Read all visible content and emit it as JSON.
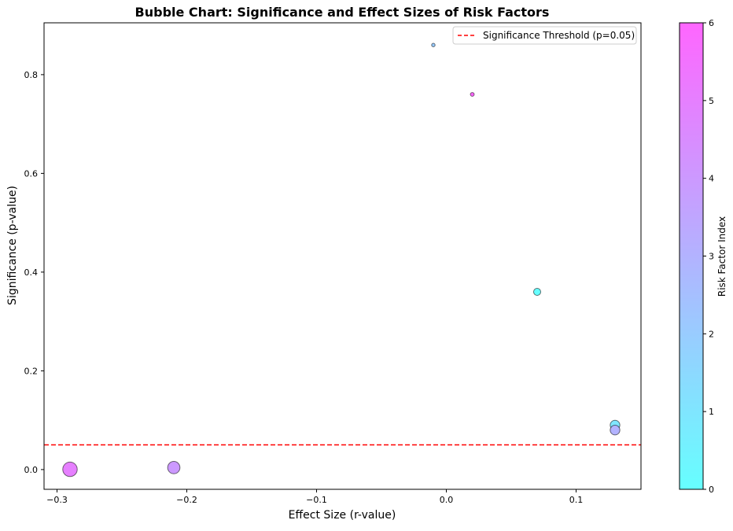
{
  "chart_data": {
    "type": "scatter",
    "title": "Bubble Chart: Significance and Effect Sizes of Risk Factors",
    "xlabel": "Effect Size (r-value)",
    "ylabel": "Significance (p-value)",
    "xlim": [
      -0.31,
      0.15
    ],
    "ylim": [
      -0.04,
      0.905
    ],
    "xticks": [
      -0.3,
      -0.2,
      -0.1,
      0.0,
      0.1
    ],
    "xtick_labels": [
      "−0.3",
      "−0.2",
      "−0.1",
      "0.0",
      "0.1"
    ],
    "yticks": [
      0.0,
      0.2,
      0.4,
      0.6,
      0.8
    ],
    "ytick_labels": [
      "0.0",
      "0.2",
      "0.4",
      "0.6",
      "0.8"
    ],
    "grid": false,
    "legend": {
      "position": "top-right",
      "entries": [
        "Significance Threshold (p=0.05)"
      ]
    },
    "threshold": {
      "y": 0.05,
      "color": "#ff0000",
      "style": "dashed",
      "label": "Significance Threshold (p=0.05)"
    },
    "colorbar": {
      "label": "Risk Factor Index",
      "range": [
        0,
        6
      ],
      "ticks": [
        0,
        1,
        2,
        3,
        4,
        5,
        6
      ],
      "tick_labels": [
        "0",
        "1",
        "2",
        "3",
        "4",
        "5",
        "6"
      ],
      "colormap": "cool",
      "color_low": "#66ffff",
      "color_high": "#ff66ff"
    },
    "points": [
      {
        "index": 0,
        "x": 0.07,
        "y": 0.36,
        "size": 0.07
      },
      {
        "index": 1,
        "x": 0.13,
        "y": 0.09,
        "size": 0.13
      },
      {
        "index": 2,
        "x": -0.01,
        "y": 0.86,
        "size": 0.01
      },
      {
        "index": 3,
        "x": 0.13,
        "y": 0.08,
        "size": 0.13
      },
      {
        "index": 4,
        "x": -0.21,
        "y": 0.004,
        "size": 0.21
      },
      {
        "index": 5,
        "x": -0.29,
        "y": 0.0005,
        "size": 0.29
      },
      {
        "index": 6,
        "x": 0.02,
        "y": 0.76,
        "size": 0.02
      }
    ],
    "marker_alpha": 0.6,
    "marker_edge_color": "#000000"
  }
}
